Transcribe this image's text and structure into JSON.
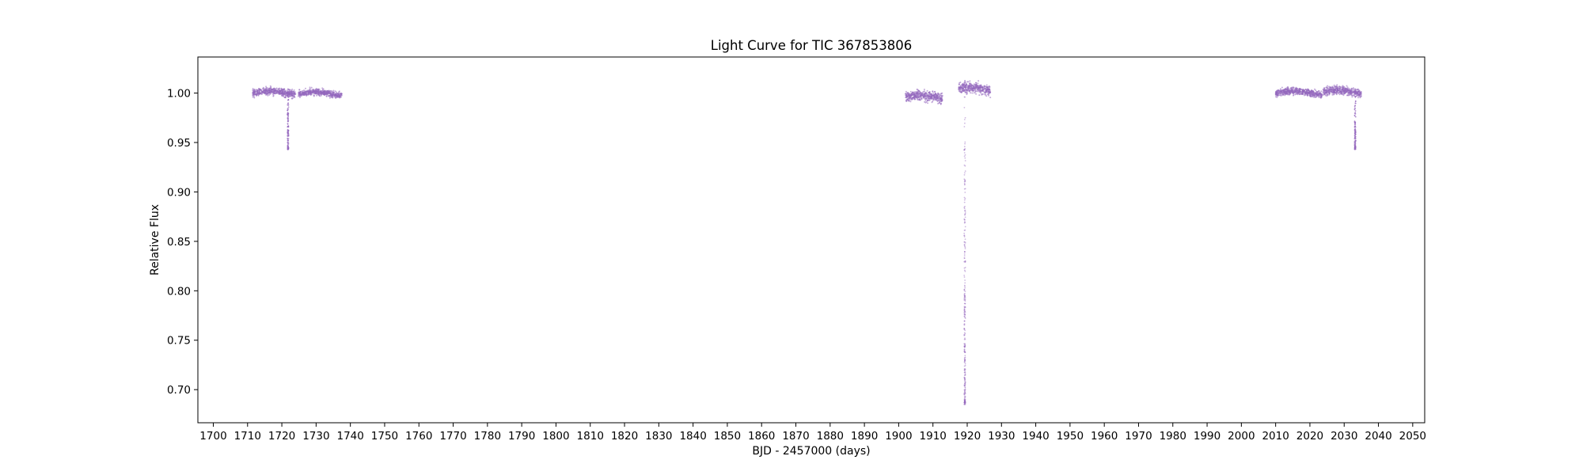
{
  "chart_data": {
    "type": "scatter",
    "title": "Light Curve for TIC 367853806",
    "xlabel": "BJD - 2457000 (days)",
    "ylabel": "Relative Flux",
    "xlim": [
      1695.5,
      2053.5
    ],
    "ylim": [
      0.6665,
      1.0365
    ],
    "xticks": [
      1700,
      1710,
      1720,
      1730,
      1740,
      1750,
      1760,
      1770,
      1780,
      1790,
      1800,
      1810,
      1820,
      1830,
      1840,
      1850,
      1860,
      1870,
      1880,
      1890,
      1900,
      1910,
      1920,
      1930,
      1940,
      1950,
      1960,
      1970,
      1980,
      1990,
      2000,
      2010,
      2020,
      2030,
      2040,
      2050
    ],
    "yticks": [
      "0.70",
      "0.75",
      "0.80",
      "0.85",
      "0.90",
      "0.95",
      "1.00"
    ],
    "grid": false,
    "marker_color": "#9467bd",
    "segments": [
      {
        "x_start": 1711.5,
        "x_end": 1724.0,
        "level": 1.0,
        "scatter": 0.0035
      },
      {
        "x_start": 1724.8,
        "x_end": 1737.5,
        "level": 0.999,
        "scatter": 0.003
      },
      {
        "x_start": 1902.0,
        "x_end": 1912.8,
        "level": 0.996,
        "scatter": 0.005
      },
      {
        "x_start": 1917.5,
        "x_end": 1926.8,
        "level": 1.004,
        "scatter": 0.005
      },
      {
        "x_start": 2010.0,
        "x_end": 2023.5,
        "level": 1.0,
        "scatter": 0.0035
      },
      {
        "x_start": 2023.8,
        "x_end": 2035.0,
        "level": 1.001,
        "scatter": 0.004
      }
    ],
    "eclipses": [
      {
        "center": 1721.8,
        "min_flux": 0.943
      },
      {
        "center": 1919.3,
        "min_flux": 0.685
      },
      {
        "center": 2033.2,
        "min_flux": 0.943
      }
    ]
  }
}
